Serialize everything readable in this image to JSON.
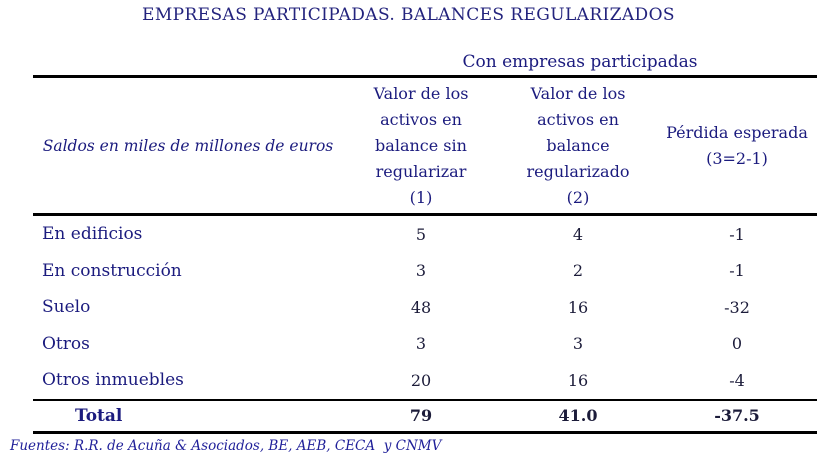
{
  "title": "EMPRESAS PARTICIPADAS. BALANCES REGULARIZADOS",
  "table": {
    "group_header": "Con empresas participadas",
    "stub_header": "Saldos en miles de millones de euros",
    "columns": [
      {
        "label": "Valor de los activos en balance sin regularizar (1)",
        "lines": [
          "Valor de los",
          "activos en",
          "balance sin",
          "regularizar",
          "(1)"
        ]
      },
      {
        "label": "Valor de los activos en balance regularizado (2)",
        "lines": [
          "Valor de los",
          "activos en",
          "balance",
          "regularizado",
          "(2)"
        ]
      },
      {
        "label": "Pérdida esperada (3=2-1)",
        "lines": [
          "Pérdida esperada",
          "(3=2-1)"
        ]
      }
    ],
    "rows": [
      {
        "label": "En edificios",
        "values": [
          "5",
          "4",
          "-1"
        ]
      },
      {
        "label": "En construcción",
        "values": [
          "3",
          "2",
          "-1"
        ]
      },
      {
        "label": "Suelo",
        "values": [
          "48",
          "16",
          "-32"
        ]
      },
      {
        "label": "Otros",
        "values": [
          "3",
          "3",
          "0"
        ]
      },
      {
        "label": "Otros inmuebles",
        "values": [
          "20",
          "16",
          "-4"
        ]
      }
    ],
    "total_row": {
      "label": "Total",
      "values": [
        "79",
        "41.0",
        "-37.5"
      ]
    }
  },
  "footer": {
    "sources": "Fuentes: R.R. de Acuña & Asociados, BE, AEB, CECA  y CNMV"
  },
  "colors": {
    "text_navy": "#1b1b7e",
    "text_numbers": "#1c1c3a",
    "rule": "#000000",
    "background": "#ffffff"
  }
}
